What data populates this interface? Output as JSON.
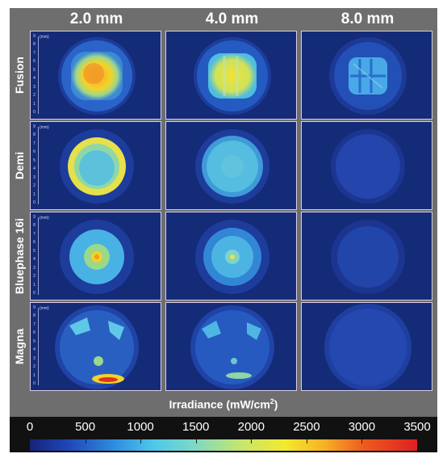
{
  "columns": [
    "2.0 mm",
    "4.0 mm",
    "8.0 mm"
  ],
  "rows": [
    "Fusion",
    "Demi",
    "Bluephase 16i",
    "Magna"
  ],
  "axis": {
    "unit": "(mm)",
    "ticks": [
      "9",
      "8",
      "7",
      "6",
      "5",
      "4",
      "3",
      "2",
      "1",
      "0"
    ]
  },
  "colorbar": {
    "title": "Irradiance (mW/cm",
    "title_sup": "2",
    "title_end": ")",
    "labels": [
      "0",
      "500",
      "1000",
      "1500",
      "2000",
      "2500",
      "3000",
      "3500"
    ]
  },
  "colors": {
    "background": "#142b78",
    "frame": "#6e6e6e"
  }
}
